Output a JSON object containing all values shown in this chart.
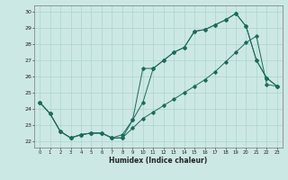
{
  "xlabel": "Humidex (Indice chaleur)",
  "background_color": "#cce8e4",
  "grid_color": "#aad4cf",
  "line_color": "#1a6b5a",
  "xlim": [
    -0.5,
    23.5
  ],
  "ylim": [
    21.6,
    30.4
  ],
  "xticks": [
    0,
    1,
    2,
    3,
    4,
    5,
    6,
    7,
    8,
    9,
    10,
    11,
    12,
    13,
    14,
    15,
    16,
    17,
    18,
    19,
    20,
    21,
    22,
    23
  ],
  "yticks": [
    22,
    23,
    24,
    25,
    26,
    27,
    28,
    29,
    30
  ],
  "line1_x": [
    0,
    1,
    2,
    3,
    4,
    5,
    6,
    7,
    8,
    9,
    10,
    11,
    12,
    13,
    14,
    15,
    16,
    17,
    18,
    19,
    20,
    21,
    22,
    23
  ],
  "line1_y": [
    24.4,
    23.7,
    22.6,
    22.2,
    22.4,
    22.5,
    22.5,
    22.2,
    22.4,
    23.3,
    26.5,
    26.5,
    27.0,
    27.5,
    27.8,
    28.8,
    28.9,
    29.2,
    29.5,
    29.9,
    29.1,
    27.0,
    25.9,
    25.4
  ],
  "line2_x": [
    0,
    1,
    2,
    3,
    4,
    5,
    6,
    7,
    8,
    9,
    10,
    11,
    12,
    13,
    14,
    15,
    16,
    17,
    18,
    19,
    20,
    21,
    22,
    23
  ],
  "line2_y": [
    24.4,
    23.7,
    22.6,
    22.2,
    22.4,
    22.5,
    22.5,
    22.2,
    22.2,
    23.3,
    24.4,
    26.5,
    27.0,
    27.5,
    27.8,
    28.8,
    28.9,
    29.2,
    29.5,
    29.9,
    29.1,
    27.0,
    25.9,
    25.4
  ],
  "line3_x": [
    0,
    1,
    2,
    3,
    4,
    5,
    6,
    7,
    8,
    9,
    10,
    11,
    12,
    13,
    14,
    15,
    16,
    17,
    18,
    19,
    20,
    21,
    22,
    23
  ],
  "line3_y": [
    24.4,
    23.7,
    22.6,
    22.2,
    22.4,
    22.5,
    22.5,
    22.2,
    22.2,
    22.8,
    23.4,
    23.8,
    24.2,
    24.6,
    25.0,
    25.4,
    25.8,
    26.3,
    26.9,
    27.5,
    28.1,
    28.5,
    25.5,
    25.4
  ]
}
